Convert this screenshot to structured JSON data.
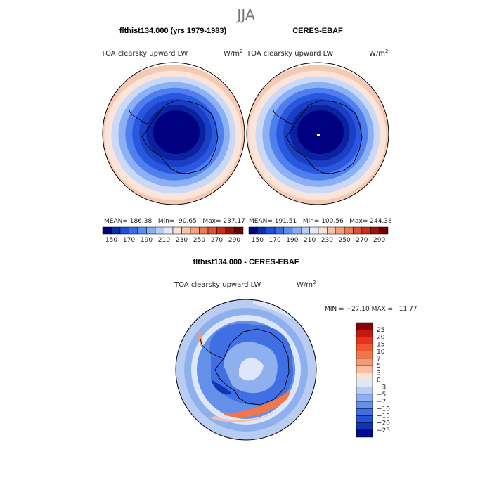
{
  "figure": {
    "season": "JJA",
    "units_base": "W/m",
    "units_exp": "2"
  },
  "chart_data": [
    {
      "type": "heatmap",
      "title": "flthist134.000 (yrs 1979-1983)",
      "subtitle": "TOA clearsky upward LW",
      "units": "W/m2",
      "stats_text": "MEAN= 186.38   Min=  90.65   Max= 237.17",
      "mean": 186.38,
      "min": 90.65,
      "max": 237.17,
      "levels": [
        "150",
        "170",
        "190",
        "210",
        "230",
        "250",
        "270",
        "290"
      ],
      "colors": [
        "#000080",
        "#0a2ea6",
        "#1f4fd6",
        "#3b6be6",
        "#5b8ef0",
        "#86aef3",
        "#b5cdf7",
        "#e0e8f8",
        "#f8e1d6",
        "#f6c2a8",
        "#f3a07e",
        "#ec7a55",
        "#e0512f",
        "#c9301a",
        "#9c1108",
        "#6e0000"
      ],
      "palette_rings": [
        "#000080",
        "#0b22a0",
        "#1a3ec4",
        "#2a57df",
        "#4f7fee",
        "#8cb0f5",
        "#cad9f7",
        "#fbe5da",
        "#f6c9b2"
      ]
    },
    {
      "type": "heatmap",
      "title": "CERES-EBAF",
      "subtitle": "TOA clearsky upward LW",
      "units": "W/m2",
      "stats_text": "MEAN= 191.51   Min= 100.56   Max= 244.38",
      "mean": 191.51,
      "min": 100.56,
      "max": 244.38,
      "levels": [
        "150",
        "170",
        "190",
        "210",
        "230",
        "250",
        "270",
        "290"
      ],
      "colors": [
        "#000080",
        "#0a2ea6",
        "#1f4fd6",
        "#3b6be6",
        "#5b8ef0",
        "#86aef3",
        "#b5cdf7",
        "#e0e8f8",
        "#f8e1d6",
        "#f6c2a8",
        "#f3a07e",
        "#ec7a55",
        "#e0512f",
        "#c9301a",
        "#9c1108",
        "#6e0000"
      ],
      "palette_rings": [
        "#000080",
        "#0b22a0",
        "#1a3ec4",
        "#2a57df",
        "#4f7fee",
        "#8cb0f5",
        "#cad9f7",
        "#fbe5da",
        "#f6c9b2"
      ]
    },
    {
      "type": "heatmap",
      "title": "flthist134.000 - CERES-EBAF",
      "subtitle": "TOA clearsky upward LW",
      "units": "W/m2",
      "stats_text": "MIN = −27.10 MAX =   11.77",
      "min": -27.1,
      "max": 11.77,
      "levels": [
        "25",
        "20",
        "15",
        "10",
        "7",
        "5",
        "3",
        "0",
        "−3",
        "−5",
        "−7",
        "−10",
        "−15",
        "−20",
        "−25"
      ],
      "colors": [
        "#8b0000",
        "#c21a0e",
        "#e8331c",
        "#f0562f",
        "#f27648",
        "#f59a72",
        "#f7bea2",
        "#fae3d3",
        "#dde7f9",
        "#b7cdf4",
        "#8fb0ef",
        "#6490ea",
        "#3f6fe3",
        "#2452d6",
        "#1034b4",
        "#000a8c"
      ]
    }
  ]
}
